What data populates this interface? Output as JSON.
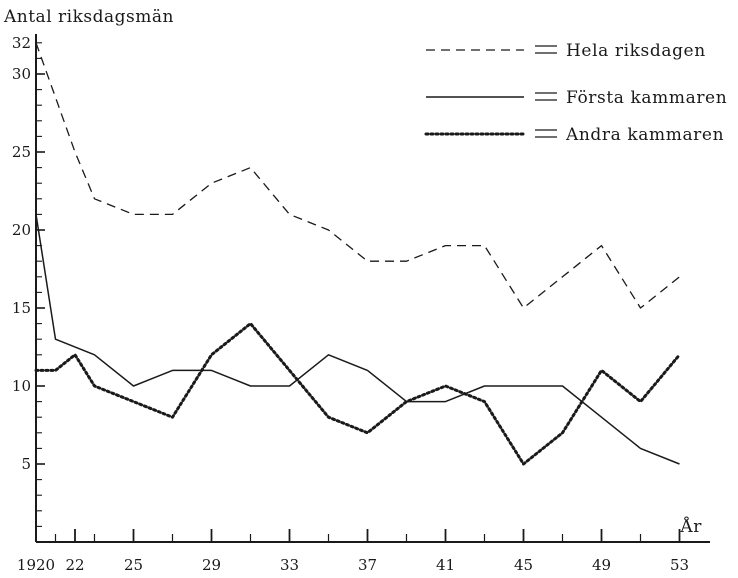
{
  "chart_data": {
    "type": "line",
    "title": "",
    "ylabel": "Antal riksdagsmän",
    "xlabel": "År",
    "ylim": [
      0,
      32
    ],
    "xlim": [
      1920,
      1954
    ],
    "y_tick_labels": [
      "5",
      "10",
      "15",
      "20",
      "25",
      "30",
      "32"
    ],
    "y_tick_values": [
      5,
      10,
      15,
      20,
      25,
      30,
      32
    ],
    "x_tick_labels": [
      "1920",
      "22",
      "25",
      "29",
      "33",
      "37",
      "41",
      "45",
      "49",
      "53"
    ],
    "x_tick_values": [
      1920,
      1922,
      1925,
      1929,
      1933,
      1937,
      1941,
      1945,
      1949,
      1953
    ],
    "x_minor_ticks": [
      1921,
      1923,
      1927,
      1931,
      1935,
      1939,
      1943,
      1947,
      1951
    ],
    "grid": false,
    "legend_position": "top-right",
    "series": [
      {
        "name": "Hela riksdagen",
        "dash": "dashed",
        "x": [
          1920,
          1922,
          1923,
          1925,
          1927,
          1929,
          1931,
          1933,
          1935,
          1937,
          1939,
          1941,
          1943,
          1945,
          1947,
          1949,
          1951,
          1953
        ],
        "y": [
          32,
          25,
          22,
          21,
          21,
          23,
          24,
          21,
          20,
          18,
          18,
          19,
          19,
          15,
          17,
          19,
          15,
          17
        ]
      },
      {
        "name": "Första kammaren",
        "dash": "solid",
        "x": [
          1920,
          1921,
          1923,
          1925,
          1927,
          1929,
          1931,
          1933,
          1935,
          1937,
          1939,
          1941,
          1943,
          1945,
          1947,
          1949,
          1951,
          1953
        ],
        "y": [
          21,
          13,
          12,
          10,
          11,
          11,
          10,
          10,
          12,
          11,
          9,
          9,
          10,
          10,
          10,
          8,
          6,
          5
        ]
      },
      {
        "name": "Andra kammaren",
        "dash": "dotted",
        "x": [
          1920,
          1921,
          1922,
          1923,
          1925,
          1927,
          1929,
          1931,
          1933,
          1935,
          1937,
          1939,
          1941,
          1943,
          1945,
          1947,
          1949,
          1951,
          1953
        ],
        "y": [
          11,
          11,
          12,
          10,
          9,
          8,
          12,
          14,
          11,
          8,
          7,
          9,
          10,
          9,
          5,
          7,
          11,
          9,
          12
        ]
      }
    ]
  }
}
